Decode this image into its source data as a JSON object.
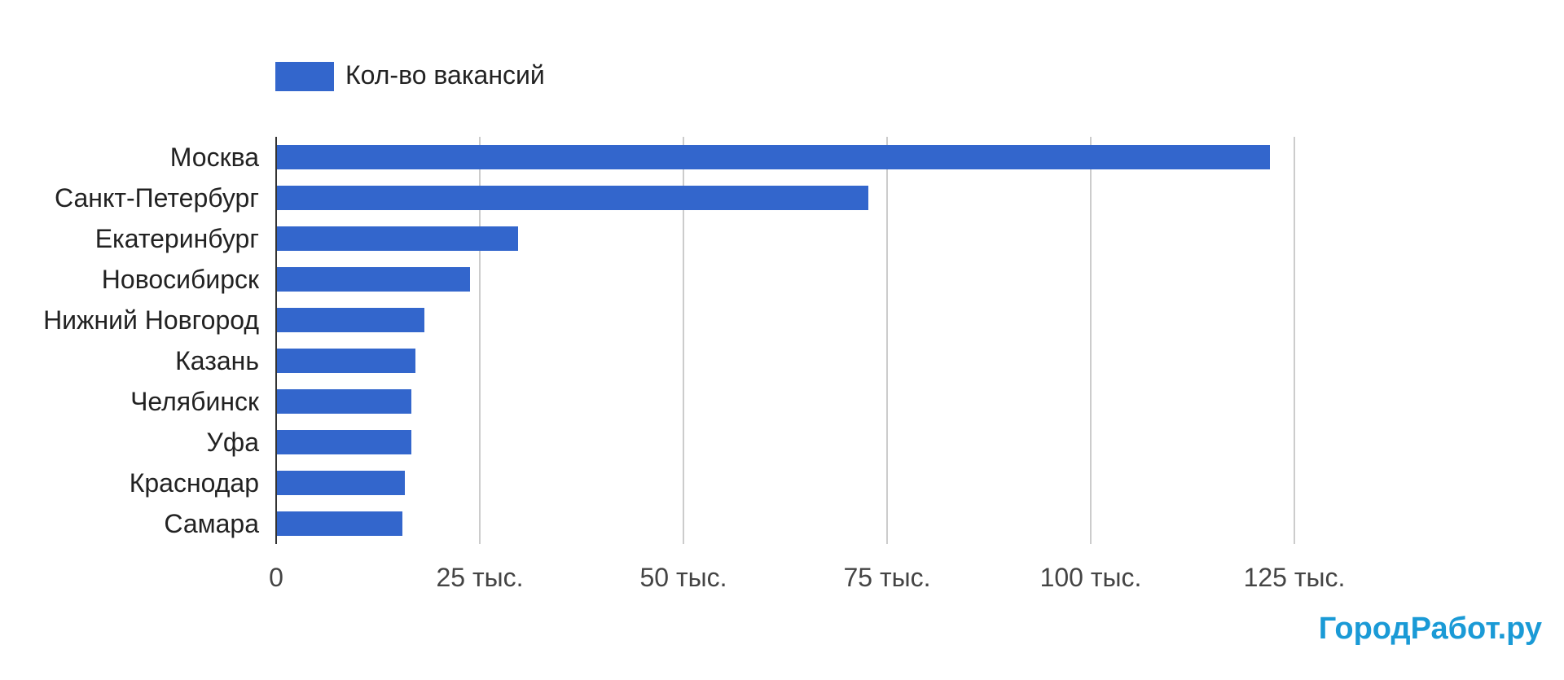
{
  "chart_data": {
    "type": "bar",
    "orientation": "horizontal",
    "categories": [
      "Москва",
      "Санкт-Петербург",
      "Екатеринбург",
      "Новосибирск",
      "Нижний Новгород",
      "Казань",
      "Челябинск",
      "Уфа",
      "Краснодар",
      "Самара"
    ],
    "series": [
      {
        "name": "Кол-во вакансий",
        "color": "#3366cc",
        "values": [
          122000,
          72700,
          29700,
          23800,
          18200,
          17100,
          16600,
          16600,
          15800,
          15500
        ]
      }
    ],
    "xlim": [
      0,
      125000
    ],
    "xticks": [
      0,
      25000,
      50000,
      75000,
      100000,
      125000
    ],
    "xtick_labels": [
      "0",
      "25 тыс.",
      "50 тыс.",
      "75 тыс.",
      "100 тыс.",
      "125 тыс."
    ],
    "grid": true,
    "legend_position": "top-left",
    "gridline_color": "#cccccc",
    "axis_color": "#333333"
  },
  "watermark": {
    "text": "ГородРабот.ру",
    "color": "#1a9ad6"
  }
}
